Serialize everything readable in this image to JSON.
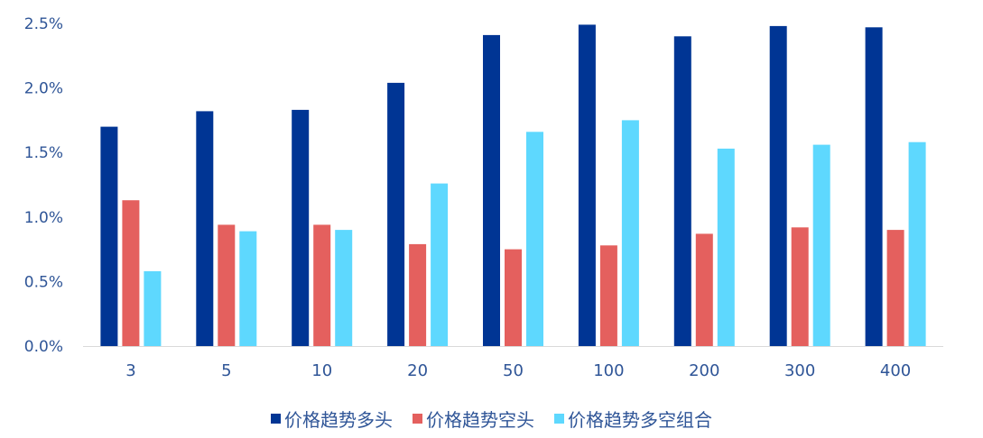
{
  "chart_data": {
    "type": "bar",
    "title": "",
    "xlabel": "",
    "ylabel": "",
    "categories": [
      "3",
      "5",
      "10",
      "20",
      "50",
      "100",
      "200",
      "300",
      "400"
    ],
    "series": [
      {
        "name": "价格趋势多头",
        "color": "#003594",
        "values": [
          1.7,
          1.82,
          1.83,
          2.04,
          2.41,
          2.49,
          2.4,
          2.48,
          2.47
        ]
      },
      {
        "name": "价格趋势空头",
        "color": "#e4605e",
        "values": [
          1.13,
          0.94,
          0.94,
          0.79,
          0.75,
          0.78,
          0.87,
          0.92,
          0.9
        ]
      },
      {
        "name": "价格趋势多空组合",
        "color": "#5ed8fe",
        "values": [
          0.58,
          0.89,
          0.9,
          1.26,
          1.66,
          1.75,
          1.53,
          1.56,
          1.58
        ]
      }
    ],
    "ylim": [
      0,
      2.5
    ],
    "yticks": [
      "0.0%",
      "0.5%",
      "1.0%",
      "1.5%",
      "2.0%",
      "2.5%"
    ],
    "grid": false,
    "legend_position": "bottom"
  }
}
